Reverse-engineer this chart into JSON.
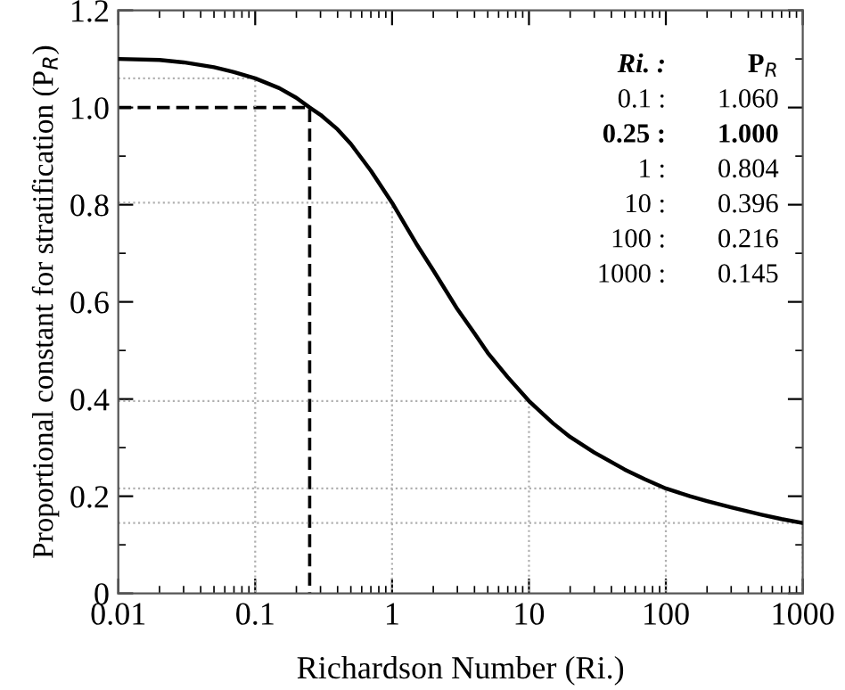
{
  "chart_data": {
    "type": "line",
    "xlabel": "Richardson Number (Ri.)",
    "ylabel": "Proportional constant for stratification (P$_{R}$)",
    "log": "x",
    "xlim": [
      0.01,
      1000
    ],
    "xticks": [
      0.01,
      0.1,
      1,
      10,
      100,
      1000
    ],
    "ylim": [
      0,
      1.2
    ],
    "yticks": [
      {
        "value": 0,
        "label": "0"
      },
      0.2,
      0.4,
      0.6,
      0.8,
      {
        "value": 1.0,
        "label": "1.0"
      },
      1.2
    ],
    "grid": false,
    "series": [
      {
        "color": "#000000",
        "line_style": "solid",
        "x": [
          0.01,
          0.02,
          0.03,
          0.05,
          0.07,
          0.1,
          0.15,
          0.2,
          0.25,
          0.3,
          0.4,
          0.5,
          0.7,
          1,
          1.5,
          2,
          3,
          4,
          5,
          7,
          10,
          15,
          20,
          30,
          50,
          70,
          100,
          150,
          200,
          300,
          500,
          700,
          1000
        ],
        "values": [
          1.1,
          1.098,
          1.093,
          1.083,
          1.073,
          1.06,
          1.04,
          1.02,
          1.0,
          0.985,
          0.955,
          0.925,
          0.87,
          0.804,
          0.72,
          0.665,
          0.585,
          0.535,
          0.495,
          0.445,
          0.396,
          0.35,
          0.322,
          0.29,
          0.255,
          0.235,
          0.216,
          0.2,
          0.19,
          0.177,
          0.162,
          0.153,
          0.145
        ]
      },
      {
        "color": "#000000",
        "line_style": "dashed",
        "x": [
          0.01,
          0.25,
          0.25
        ],
        "values": [
          1.0,
          1.0,
          0
        ]
      },
      {
        "color": "#b0b0b0",
        "line_style": "dotted",
        "x": [
          0.01,
          0.1,
          0.1
        ],
        "values": [
          1.06,
          1.06,
          0
        ]
      },
      {
        "color": "#b0b0b0",
        "line_style": "dotted",
        "x": [
          0.01,
          1,
          1
        ],
        "values": [
          0.804,
          0.804,
          0
        ]
      },
      {
        "color": "#b0b0b0",
        "line_style": "dotted",
        "x": [
          0.01,
          10,
          10
        ],
        "values": [
          0.396,
          0.396,
          0
        ]
      },
      {
        "color": "#b0b0b0",
        "line_style": "dotted",
        "x": [
          0.01,
          100,
          100
        ],
        "values": [
          0.216,
          0.216,
          0
        ]
      },
      {
        "color": "#b0b0b0",
        "line_style": "dotted",
        "x": [
          0.01,
          1000,
          1000
        ],
        "values": [
          0.145,
          0.145,
          0
        ]
      }
    ],
    "annotations": [
      "Ri. :",
      "P$_{R}$",
      "0.1 :",
      "1.060",
      "0.25 :",
      "1.000",
      "1 :",
      "0.804",
      "10 :",
      "0.396",
      "100 :",
      "0.216",
      "1000 :",
      "0.145"
    ]
  }
}
